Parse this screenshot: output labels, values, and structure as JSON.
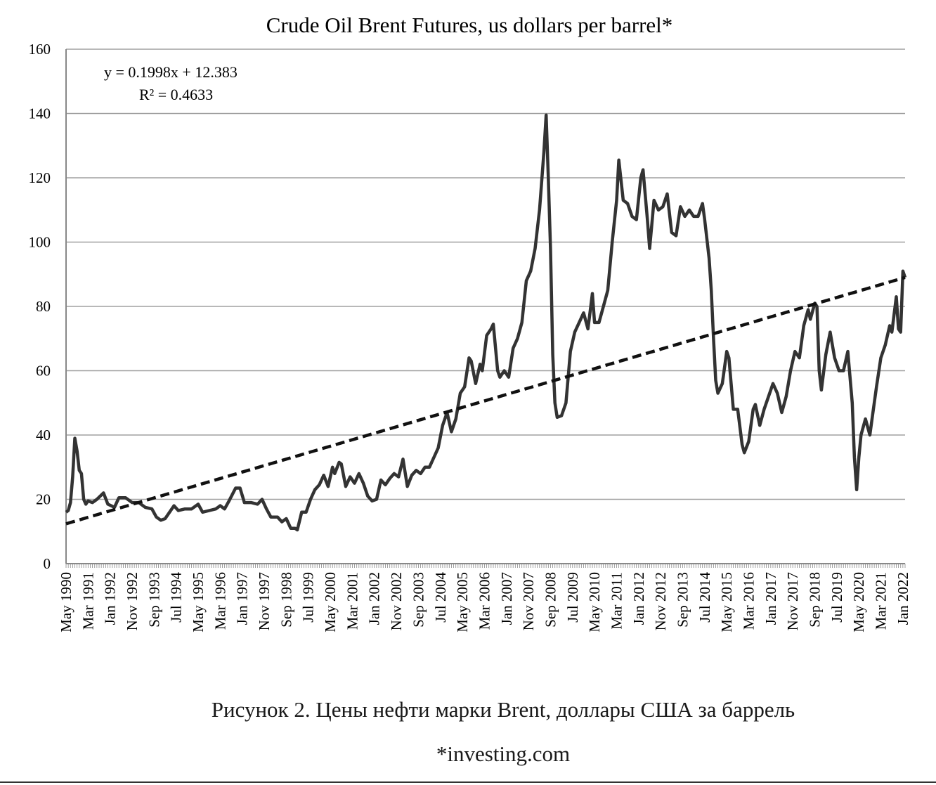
{
  "caption": "Рисунок 2. Цены нефти марки Brent, доллары США за баррель",
  "source": "*investing.com",
  "chart_data": {
    "type": "line",
    "title": "Crude Oil Brent Futures, us dollars per barrel*",
    "ylim": [
      0,
      160
    ],
    "yticks": [
      0,
      20,
      40,
      60,
      80,
      100,
      120,
      140,
      160
    ],
    "grid": "horizontal",
    "x_range": [
      "May 1990",
      "Jan 2022"
    ],
    "xticks": [
      "May 1990",
      "Mar 1991",
      "Jan 1992",
      "Nov 1992",
      "Sep 1993",
      "Jul 1994",
      "May 1995",
      "Mar 1996",
      "Jan 1997",
      "Nov 1997",
      "Sep 1998",
      "Jul 1999",
      "May 2000",
      "Mar 2001",
      "Jan 2002",
      "Nov 2002",
      "Sep 2003",
      "Jul 2004",
      "May 2005",
      "Mar 2006",
      "Jan 2007",
      "Nov 2007",
      "Sep 2008",
      "Jul 2009",
      "May 2010",
      "Mar 2011",
      "Jan 2012",
      "Nov 2012",
      "Sep 2013",
      "Jul 2014",
      "May 2015",
      "Mar 2016",
      "Jan 2017",
      "Nov 2017",
      "Sep 2018",
      "Jul 2019",
      "May 2020",
      "Mar 2021",
      "Jan 2022"
    ],
    "series": [
      {
        "style": "solid",
        "color": "#333333",
        "points": [
          [
            "1990-05",
            16
          ],
          [
            "1990-06",
            16.5
          ],
          [
            "1990-07",
            19
          ],
          [
            "1990-08",
            27
          ],
          [
            "1990-09",
            39
          ],
          [
            "1990-10",
            35
          ],
          [
            "1990-11",
            29
          ],
          [
            "1990-12",
            28
          ],
          [
            "1991-01",
            20
          ],
          [
            "1991-02",
            18.5
          ],
          [
            "1991-03",
            19.5
          ],
          [
            "1991-05",
            19
          ],
          [
            "1991-07",
            20
          ],
          [
            "1991-10",
            22
          ],
          [
            "1991-12",
            18.5
          ],
          [
            "1992-03",
            17.5
          ],
          [
            "1992-05",
            20.5
          ],
          [
            "1992-08",
            20.5
          ],
          [
            "1992-11",
            19
          ],
          [
            "1993-02",
            19
          ],
          [
            "1993-05",
            17.5
          ],
          [
            "1993-08",
            17
          ],
          [
            "1993-10",
            14.5
          ],
          [
            "1993-12",
            13.5
          ],
          [
            "1994-02",
            14
          ],
          [
            "1994-06",
            18
          ],
          [
            "1994-08",
            16.5
          ],
          [
            "1994-11",
            17
          ],
          [
            "1995-02",
            17
          ],
          [
            "1995-05",
            18.5
          ],
          [
            "1995-07",
            16
          ],
          [
            "1995-10",
            16.5
          ],
          [
            "1996-01",
            17
          ],
          [
            "1996-03",
            18
          ],
          [
            "1996-05",
            17
          ],
          [
            "1996-07",
            19.5
          ],
          [
            "1996-10",
            23.5
          ],
          [
            "1996-12",
            23.5
          ],
          [
            "1997-02",
            19
          ],
          [
            "1997-05",
            19
          ],
          [
            "1997-08",
            18.5
          ],
          [
            "1997-10",
            20
          ],
          [
            "1997-12",
            17
          ],
          [
            "1998-02",
            14.5
          ],
          [
            "1998-05",
            14.5
          ],
          [
            "1998-07",
            13
          ],
          [
            "1998-09",
            14
          ],
          [
            "1998-11",
            11
          ],
          [
            "1999-01",
            11
          ],
          [
            "1999-02",
            10.5
          ],
          [
            "1999-04",
            16
          ],
          [
            "1999-06",
            16
          ],
          [
            "1999-08",
            20
          ],
          [
            "1999-10",
            23
          ],
          [
            "1999-12",
            24.5
          ],
          [
            "2000-02",
            27.5
          ],
          [
            "2000-04",
            24
          ],
          [
            "2000-06",
            30
          ],
          [
            "2000-07",
            28
          ],
          [
            "2000-09",
            31.5
          ],
          [
            "2000-10",
            31
          ],
          [
            "2000-12",
            24
          ],
          [
            "2001-02",
            27
          ],
          [
            "2001-04",
            25
          ],
          [
            "2001-06",
            28
          ],
          [
            "2001-08",
            25
          ],
          [
            "2001-10",
            21
          ],
          [
            "2001-12",
            19.5
          ],
          [
            "2002-02",
            20
          ],
          [
            "2002-04",
            26
          ],
          [
            "2002-06",
            24.5
          ],
          [
            "2002-08",
            26.5
          ],
          [
            "2002-10",
            28
          ],
          [
            "2002-12",
            27
          ],
          [
            "2003-02",
            32.5
          ],
          [
            "2003-04",
            24
          ],
          [
            "2003-06",
            27.5
          ],
          [
            "2003-08",
            29
          ],
          [
            "2003-10",
            28
          ],
          [
            "2003-12",
            30
          ],
          [
            "2004-02",
            30
          ],
          [
            "2004-04",
            33
          ],
          [
            "2004-06",
            36
          ],
          [
            "2004-08",
            43
          ],
          [
            "2004-10",
            47
          ],
          [
            "2004-12",
            41
          ],
          [
            "2005-02",
            45
          ],
          [
            "2005-04",
            53
          ],
          [
            "2005-06",
            55
          ],
          [
            "2005-08",
            64
          ],
          [
            "2005-09",
            63
          ],
          [
            "2005-11",
            56
          ],
          [
            "2006-01",
            62
          ],
          [
            "2006-02",
            60
          ],
          [
            "2006-04",
            71
          ],
          [
            "2006-06",
            73
          ],
          [
            "2006-07",
            74.5
          ],
          [
            "2006-09",
            60
          ],
          [
            "2006-10",
            58
          ],
          [
            "2006-12",
            60
          ],
          [
            "2007-02",
            58
          ],
          [
            "2007-04",
            67
          ],
          [
            "2007-06",
            70
          ],
          [
            "2007-08",
            75
          ],
          [
            "2007-10",
            88
          ],
          [
            "2007-12",
            91
          ],
          [
            "2008-02",
            98
          ],
          [
            "2008-04",
            110
          ],
          [
            "2008-06",
            128
          ],
          [
            "2008-07",
            139.5
          ],
          [
            "2008-08",
            120
          ],
          [
            "2008-09",
            98
          ],
          [
            "2008-10",
            65
          ],
          [
            "2008-11",
            50
          ],
          [
            "2008-12",
            45.5
          ],
          [
            "2009-02",
            46
          ],
          [
            "2009-04",
            50
          ],
          [
            "2009-06",
            66
          ],
          [
            "2009-08",
            72
          ],
          [
            "2009-10",
            75
          ],
          [
            "2009-12",
            78
          ],
          [
            "2010-02",
            73
          ],
          [
            "2010-04",
            84
          ],
          [
            "2010-05",
            75
          ],
          [
            "2010-07",
            75
          ],
          [
            "2010-09",
            80
          ],
          [
            "2010-11",
            85
          ],
          [
            "2011-01",
            100
          ],
          [
            "2011-03",
            113
          ],
          [
            "2011-04",
            125.5
          ],
          [
            "2011-06",
            113
          ],
          [
            "2011-08",
            112
          ],
          [
            "2011-10",
            108
          ],
          [
            "2011-12",
            107
          ],
          [
            "2012-02",
            120
          ],
          [
            "2012-03",
            122.5
          ],
          [
            "2012-05",
            107
          ],
          [
            "2012-06",
            98
          ],
          [
            "2012-08",
            113
          ],
          [
            "2012-10",
            110
          ],
          [
            "2012-12",
            111
          ],
          [
            "2013-02",
            115
          ],
          [
            "2013-04",
            103
          ],
          [
            "2013-06",
            102
          ],
          [
            "2013-08",
            111
          ],
          [
            "2013-10",
            108
          ],
          [
            "2013-12",
            110
          ],
          [
            "2014-02",
            108
          ],
          [
            "2014-04",
            108
          ],
          [
            "2014-06",
            112
          ],
          [
            "2014-07",
            107
          ],
          [
            "2014-09",
            95
          ],
          [
            "2014-10",
            85
          ],
          [
            "2014-11",
            70
          ],
          [
            "2014-12",
            57
          ],
          [
            "2015-01",
            53
          ],
          [
            "2015-03",
            56
          ],
          [
            "2015-05",
            66
          ],
          [
            "2015-06",
            64
          ],
          [
            "2015-08",
            48
          ],
          [
            "2015-10",
            48
          ],
          [
            "2015-12",
            37
          ],
          [
            "2016-01",
            34.5
          ],
          [
            "2016-03",
            38
          ],
          [
            "2016-05",
            48
          ],
          [
            "2016-06",
            49.5
          ],
          [
            "2016-08",
            43
          ],
          [
            "2016-10",
            48
          ],
          [
            "2016-12",
            52
          ],
          [
            "2017-02",
            56
          ],
          [
            "2017-04",
            53
          ],
          [
            "2017-06",
            47
          ],
          [
            "2017-08",
            52
          ],
          [
            "2017-10",
            60
          ],
          [
            "2017-12",
            66
          ],
          [
            "2018-02",
            64
          ],
          [
            "2018-04",
            74
          ],
          [
            "2018-06",
            79
          ],
          [
            "2018-07",
            76
          ],
          [
            "2018-09",
            81
          ],
          [
            "2018-10",
            80
          ],
          [
            "2018-11",
            60
          ],
          [
            "2018-12",
            54
          ],
          [
            "2019-02",
            65
          ],
          [
            "2019-04",
            72
          ],
          [
            "2019-06",
            64
          ],
          [
            "2019-08",
            60
          ],
          [
            "2019-10",
            60
          ],
          [
            "2019-12",
            66
          ],
          [
            "2020-02",
            50
          ],
          [
            "2020-03",
            33
          ],
          [
            "2020-04",
            23
          ],
          [
            "2020-05",
            33
          ],
          [
            "2020-06",
            40
          ],
          [
            "2020-08",
            45
          ],
          [
            "2020-10",
            40
          ],
          [
            "2020-11",
            45
          ],
          [
            "2021-01",
            55
          ],
          [
            "2021-03",
            64
          ],
          [
            "2021-05",
            68
          ],
          [
            "2021-07",
            74
          ],
          [
            "2021-08",
            72
          ],
          [
            "2021-10",
            83
          ],
          [
            "2021-11",
            73
          ],
          [
            "2021-12",
            72
          ],
          [
            "2022-01",
            91
          ],
          [
            "2022-02",
            89
          ]
        ]
      },
      {
        "style": "dashed",
        "color": "#111111",
        "points": [
          [
            "1990-05",
            12.4
          ],
          [
            "2022-02",
            89
          ]
        ]
      }
    ],
    "annotations": [
      "y = 0.1998x + 12.383",
      "R² = 0.4633"
    ]
  }
}
